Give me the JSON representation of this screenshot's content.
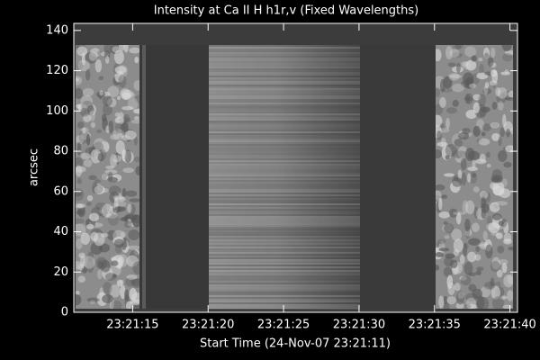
{
  "chart_data": {
    "type": "image",
    "title": "Intensity at Ca II H h1r,v (Fixed Wavelengths)",
    "x_label": "Start Time (24-Nov-07 23:21:11)",
    "y_label": "arcsec",
    "xlim": [
      11.1,
      40.5
    ],
    "xticks": [
      {
        "value": 15,
        "label": "23:21:15"
      },
      {
        "value": 20,
        "label": "23:21:20"
      },
      {
        "value": 25,
        "label": "23:21:25"
      },
      {
        "value": 30,
        "label": "23:21:30"
      },
      {
        "value": 35,
        "label": "23:21:35"
      },
      {
        "value": 40,
        "label": "23:21:40"
      }
    ],
    "ylim": [
      0,
      143.5
    ],
    "yticks": [
      0,
      20,
      40,
      60,
      80,
      100,
      120,
      140
    ]
  }
}
